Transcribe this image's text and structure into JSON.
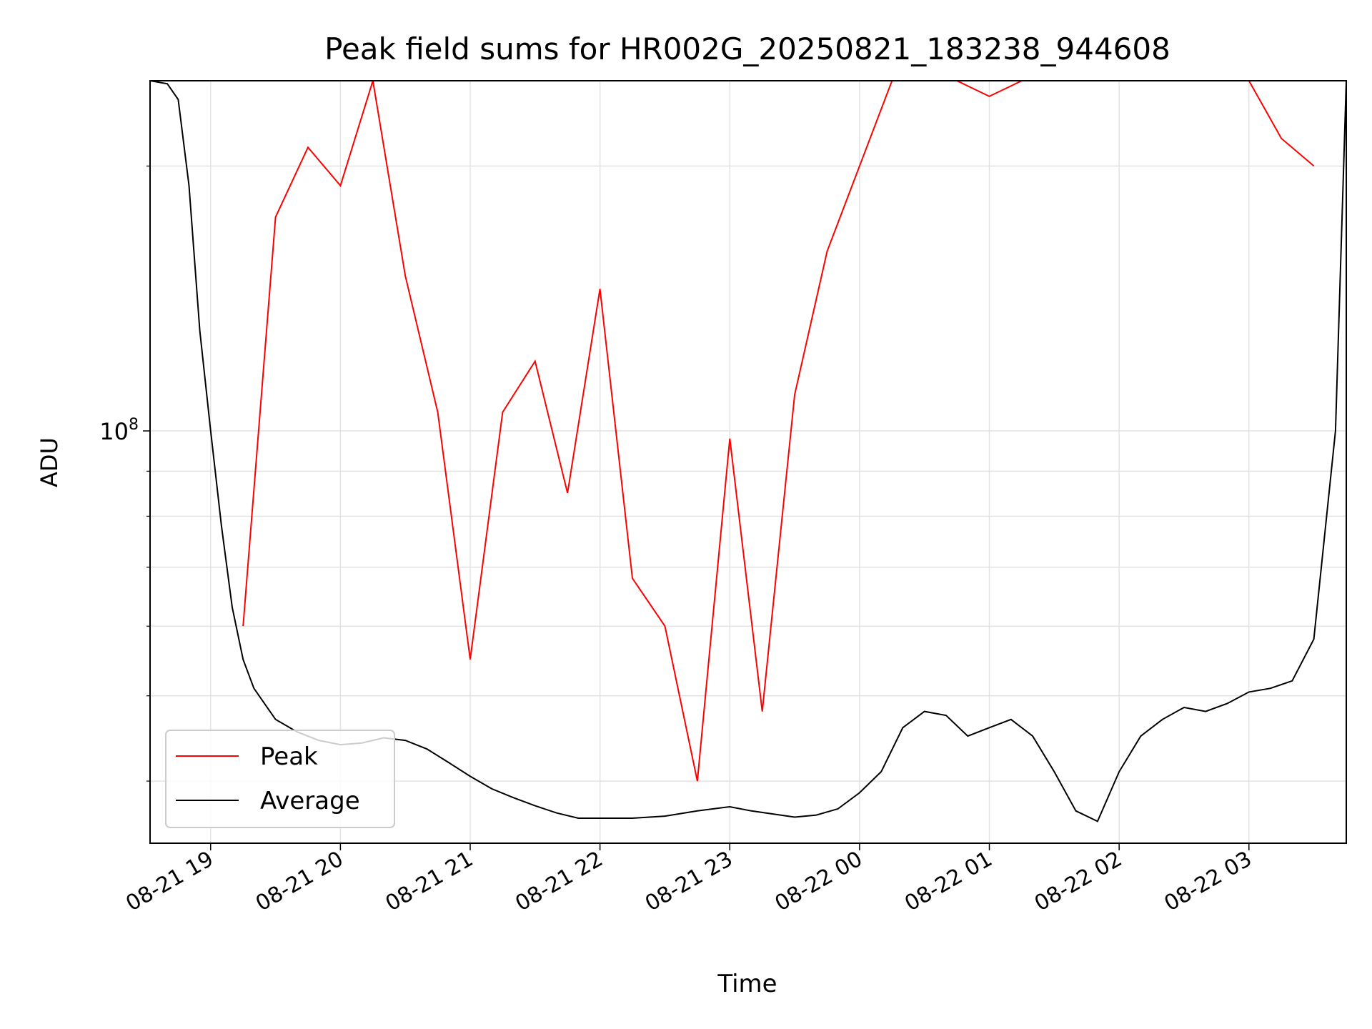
{
  "chart_data": {
    "type": "line",
    "title": "Peak field sums for HR002G_20250821_183238_944608",
    "xlabel": "Time",
    "ylabel": "ADU",
    "y_scale": "log",
    "grid": true,
    "legend_position": "lower-left",
    "x_range": [
      "2025-08-21 18:32",
      "2025-08-22 03:45"
    ],
    "ylim": [
      34000000,
      250000000
    ],
    "x_ticks": [
      {
        "label": "08-21 19",
        "t": "2025-08-21 19:00"
      },
      {
        "label": "08-21 20",
        "t": "2025-08-21 20:00"
      },
      {
        "label": "08-21 21",
        "t": "2025-08-21 21:00"
      },
      {
        "label": "08-21 22",
        "t": "2025-08-21 22:00"
      },
      {
        "label": "08-21 23",
        "t": "2025-08-21 23:00"
      },
      {
        "label": "08-22 00",
        "t": "2025-08-22 00:00"
      },
      {
        "label": "08-22 01",
        "t": "2025-08-22 01:00"
      },
      {
        "label": "08-22 02",
        "t": "2025-08-22 02:00"
      },
      {
        "label": "08-22 03",
        "t": "2025-08-22 03:00"
      }
    ],
    "y_major_tick": {
      "base": "10",
      "exponent": "8",
      "value": 100000000
    },
    "y_minor_ticks": [
      40000000,
      50000000,
      60000000,
      70000000,
      80000000,
      90000000,
      200000000
    ],
    "series": [
      {
        "name": "Average",
        "color": "#000000",
        "x": [
          "2025-08-21 18:32",
          "2025-08-21 18:40",
          "2025-08-21 18:45",
          "2025-08-21 18:50",
          "2025-08-21 18:55",
          "2025-08-21 19:00",
          "2025-08-21 19:05",
          "2025-08-21 19:10",
          "2025-08-21 19:15",
          "2025-08-21 19:20",
          "2025-08-21 19:30",
          "2025-08-21 19:40",
          "2025-08-21 19:50",
          "2025-08-21 20:00",
          "2025-08-21 20:10",
          "2025-08-21 20:20",
          "2025-08-21 20:30",
          "2025-08-21 20:40",
          "2025-08-21 20:50",
          "2025-08-21 21:00",
          "2025-08-21 21:10",
          "2025-08-21 21:20",
          "2025-08-21 21:30",
          "2025-08-21 21:40",
          "2025-08-21 21:50",
          "2025-08-21 22:00",
          "2025-08-21 22:15",
          "2025-08-21 22:30",
          "2025-08-21 22:45",
          "2025-08-21 23:00",
          "2025-08-21 23:10",
          "2025-08-21 23:20",
          "2025-08-21 23:30",
          "2025-08-21 23:40",
          "2025-08-21 23:50",
          "2025-08-22 00:00",
          "2025-08-22 00:10",
          "2025-08-22 00:20",
          "2025-08-22 00:30",
          "2025-08-22 00:40",
          "2025-08-22 00:50",
          "2025-08-22 01:00",
          "2025-08-22 01:10",
          "2025-08-22 01:20",
          "2025-08-22 01:30",
          "2025-08-22 01:40",
          "2025-08-22 01:50",
          "2025-08-22 02:00",
          "2025-08-22 02:10",
          "2025-08-22 02:20",
          "2025-08-22 02:30",
          "2025-08-22 02:40",
          "2025-08-22 02:50",
          "2025-08-22 03:00",
          "2025-08-22 03:10",
          "2025-08-22 03:20",
          "2025-08-22 03:30",
          "2025-08-22 03:40",
          "2025-08-22 03:45"
        ],
        "y": [
          250000000,
          248000000,
          238000000,
          190000000,
          130000000,
          100000000,
          78000000,
          63000000,
          55000000,
          51000000,
          47000000,
          45500000,
          44500000,
          44000000,
          44200000,
          44800000,
          44500000,
          43500000,
          42000000,
          40500000,
          39200000,
          38300000,
          37500000,
          36800000,
          36300000,
          36300000,
          36300000,
          36500000,
          37000000,
          37400000,
          37000000,
          36700000,
          36400000,
          36600000,
          37200000,
          38800000,
          41000000,
          46000000,
          48000000,
          47500000,
          45000000,
          46000000,
          47000000,
          45000000,
          41000000,
          37000000,
          36000000,
          41000000,
          45000000,
          47000000,
          48500000,
          48000000,
          49000000,
          50500000,
          51000000,
          52000000,
          58000000,
          100000000,
          250000000
        ]
      },
      {
        "name": "Peak",
        "color": "#ff0000",
        "x": [
          "2025-08-21 19:15",
          "2025-08-21 19:30",
          "2025-08-21 19:45",
          "2025-08-21 20:00",
          "2025-08-21 20:15",
          "2025-08-21 20:30",
          "2025-08-21 20:45",
          "2025-08-21 21:00",
          "2025-08-21 21:15",
          "2025-08-21 21:30",
          "2025-08-21 21:45",
          "2025-08-21 22:00",
          "2025-08-21 22:15",
          "2025-08-21 22:30",
          "2025-08-21 22:45",
          "2025-08-21 23:00",
          "2025-08-21 23:15",
          "2025-08-21 23:30",
          "2025-08-21 23:45",
          "2025-08-22 00:00",
          "2025-08-22 00:15",
          "2025-08-22 00:30",
          "2025-08-22 00:45",
          "2025-08-22 01:00",
          "2025-08-22 01:15",
          "2025-08-22 01:30",
          "2025-08-22 01:45",
          "2025-08-22 02:00",
          "2025-08-22 02:15",
          "2025-08-22 02:30",
          "2025-08-22 02:45",
          "2025-08-22 03:00",
          "2025-08-22 03:15",
          "2025-08-22 03:30"
        ],
        "y": [
          60000000,
          175000000,
          210000000,
          190000000,
          250000000,
          150000000,
          105000000,
          55000000,
          105000000,
          120000000,
          85000000,
          145000000,
          68000000,
          60000000,
          40000000,
          98000000,
          48000000,
          110000000,
          160000000,
          200000000,
          250000000,
          250000000,
          250000000,
          240000000,
          250000000,
          250000000,
          250000000,
          250000000,
          250000000,
          250000000,
          250000000,
          250000000,
          215000000,
          200000000
        ]
      }
    ]
  }
}
